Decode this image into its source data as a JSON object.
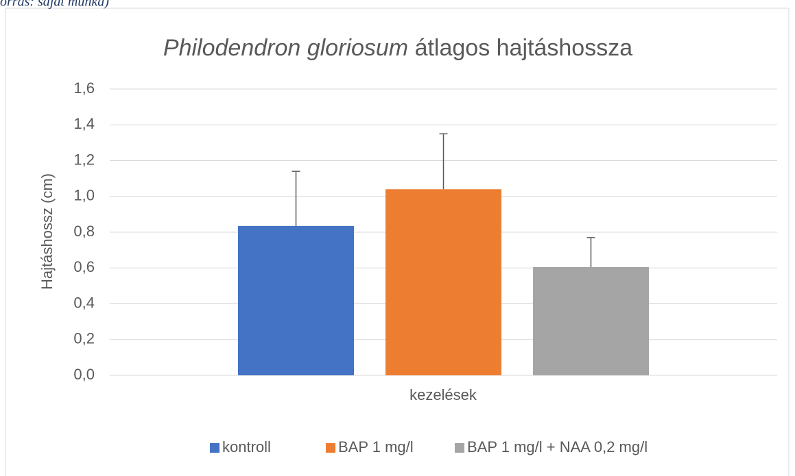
{
  "source_note": "orrás: saját munka)",
  "chart_data": {
    "type": "bar",
    "title": [
      "Philodendron gloriosum",
      "átlagos hajtáshossza"
    ],
    "y_label": "Hajtáshossz (cm)",
    "x_label": "kezelések",
    "categories": [
      "kezelések"
    ],
    "series": [
      {
        "name": "kontroll",
        "color": "#4472c4",
        "values": [
          0.835
        ],
        "errors": [
          0.305
        ]
      },
      {
        "name": "BAP 1 mg/l",
        "color": "#ed7d31",
        "values": [
          1.04
        ],
        "errors": [
          0.31
        ]
      },
      {
        "name": "BAP 1 mg/l + NAA 0,2 mg/l",
        "color": "#a5a5a5",
        "values": [
          0.605
        ],
        "errors": [
          0.165
        ]
      }
    ],
    "ylim": [
      0,
      1.6
    ],
    "yticks": [
      {
        "value": 0,
        "label": "0,0"
      },
      {
        "value": 0.2,
        "label": "0,2"
      },
      {
        "value": 0.4,
        "label": "0,4"
      },
      {
        "value": 0.6,
        "label": "0,6"
      },
      {
        "value": 0.8,
        "label": "0,8"
      },
      {
        "value": 1,
        "label": "1,0"
      },
      {
        "value": 1.2,
        "label": "1,2"
      },
      {
        "value": 1.4,
        "label": "1,4"
      },
      {
        "value": 1.6,
        "label": "1,6"
      }
    ],
    "grid": true,
    "legend": "bottom"
  }
}
